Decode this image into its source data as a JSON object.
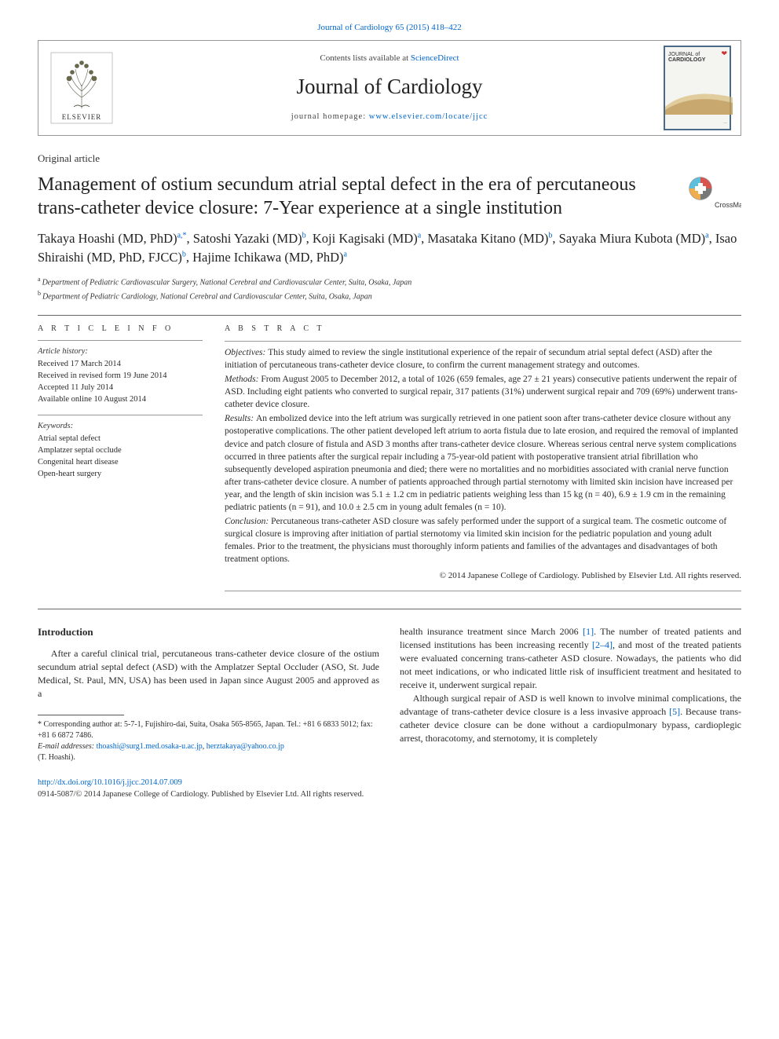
{
  "top_citation": "Journal of Cardiology 65 (2015) 418–422",
  "header": {
    "contents_line_pre": "Contents lists available at ",
    "contents_line_link": "ScienceDirect",
    "journal_name": "Journal of Cardiology",
    "homepage_pre": "journal homepage: ",
    "homepage_link": "www.elsevier.com/locate/jjcc",
    "publisher_name": "ELSEVIER",
    "cover_label_1": "JOURNAL of",
    "cover_label_2": "CARDIOLOGY"
  },
  "article_type": "Original article",
  "title": "Management of ostium secundum atrial septal defect in the era of percutaneous trans-catheter device closure: 7-Year experience at a single institution",
  "crossmark_label": "CrossMark",
  "authors_html_parts": [
    {
      "name": "Takaya Hoashi (MD, PhD)",
      "sup": "a,*"
    },
    {
      "name": "Satoshi Yazaki (MD)",
      "sup": "b"
    },
    {
      "name": "Koji Kagisaki (MD)",
      "sup": "a"
    },
    {
      "name": "Masataka Kitano (MD)",
      "sup": "b"
    },
    {
      "name": "Sayaka Miura Kubota (MD)",
      "sup": "a"
    },
    {
      "name": "Isao Shiraishi (MD, PhD, FJCC)",
      "sup": "b"
    },
    {
      "name": "Hajime Ichikawa (MD, PhD)",
      "sup": "a"
    }
  ],
  "affiliations": [
    {
      "key": "a",
      "text": "Department of Pediatric Cardiovascular Surgery, National Cerebral and Cardiovascular Center, Suita, Osaka, Japan"
    },
    {
      "key": "b",
      "text": "Department of Pediatric Cardiology, National Cerebral and Cardiovascular Center, Suita, Osaka, Japan"
    }
  ],
  "article_info": {
    "section_label": "A R T I C L E  I N F O",
    "history_label": "Article history:",
    "history": [
      "Received 17 March 2014",
      "Received in revised form 19 June 2014",
      "Accepted 11 July 2014",
      "Available online 10 August 2014"
    ],
    "keywords_label": "Keywords:",
    "keywords": [
      "Atrial septal defect",
      "Amplatzer septal occlude",
      "Congenital heart disease",
      "Open-heart surgery"
    ]
  },
  "abstract": {
    "section_label": "A B S T R A C T",
    "parts": [
      {
        "label": "Objectives:",
        "text": "This study aimed to review the single institutional experience of the repair of secundum atrial septal defect (ASD) after the initiation of percutaneous trans-catheter device closure, to confirm the current management strategy and outcomes."
      },
      {
        "label": "Methods:",
        "text": "From August 2005 to December 2012, a total of 1026 (659 females, age 27 ± 21 years) consecutive patients underwent the repair of ASD. Including eight patients who converted to surgical repair, 317 patients (31%) underwent surgical repair and 709 (69%) underwent trans-catheter device closure."
      },
      {
        "label": "Results:",
        "text": "An embolized device into the left atrium was surgically retrieved in one patient soon after trans-catheter device closure without any postoperative complications. The other patient developed left atrium to aorta fistula due to late erosion, and required the removal of implanted device and patch closure of fistula and ASD 3 months after trans-catheter device closure. Whereas serious central nerve system complications occurred in three patients after the surgical repair including a 75-year-old patient with postoperative transient atrial fibrillation who subsequently developed aspiration pneumonia and died; there were no mortalities and no morbidities associated with cranial nerve function after trans-catheter device closure. A number of patients approached through partial sternotomy with limited skin incision have increased per year, and the length of skin incision was 5.1 ± 1.2 cm in pediatric patients weighing less than 15 kg (n = 40), 6.9 ± 1.9 cm in the remaining pediatric patients (n = 91), and 10.0 ± 2.5 cm in young adult females (n = 10)."
      },
      {
        "label": "Conclusion:",
        "text": "Percutaneous trans-catheter ASD closure was safely performed under the support of a surgical team. The cosmetic outcome of surgical closure is improving after initiation of partial sternotomy via limited skin incision for the pediatric population and young adult females. Prior to the treatment, the physicians must thoroughly inform patients and families of the advantages and disadvantages of both treatment options."
      }
    ],
    "copyright": "© 2014 Japanese College of Cardiology. Published by Elsevier Ltd. All rights reserved."
  },
  "body": {
    "intro_heading": "Introduction",
    "left_para": "After a careful clinical trial, percutaneous trans-catheter device closure of the ostium secundum atrial septal defect (ASD) with the Amplatzer Septal Occluder (ASO, St. Jude Medical, St. Paul, MN, USA) has been used in Japan since August 2005 and approved as a",
    "right_para_1_pre": "health insurance treatment since March 2006 ",
    "right_para_1_ref1": "[1]",
    "right_para_1_mid": ". The number of treated patients and licensed institutions has been increasing recently ",
    "right_para_1_ref2": "[2–4]",
    "right_para_1_post": ", and most of the treated patients were evaluated concerning trans-catheter ASD closure. Nowadays, the patients who did not meet indications, or who indicated little risk of insufficient treatment and hesitated to receive it, underwent surgical repair.",
    "right_para_2_pre": "Although surgical repair of ASD is well known to involve minimal complications, the advantage of trans-catheter device closure is a less invasive approach ",
    "right_para_2_ref": "[5]",
    "right_para_2_post": ". Because trans-catheter device closure can be done without a cardiopulmonary bypass, cardioplegic arrest, thoracotomy, and sternotomy, it is completely"
  },
  "footnote": {
    "corr_pre": "* Corresponding author at: 5-7-1, Fujishiro-dai, Suita, Osaka 565-8565, Japan. Tel.: +81 6 6833 5012; fax: +81 6 6872 7486.",
    "email_label": "E-mail addresses:",
    "email1": "thoashi@surg1.med.osaka-u.ac.jp",
    "email_sep": ", ",
    "email2": "herztakaya@yahoo.co.jp",
    "email_post": "(T. Hoashi)."
  },
  "footer": {
    "doi": "http://dx.doi.org/10.1016/j.jjcc.2014.07.009",
    "issn_copy": "0914-5087/© 2014 Japanese College of Cardiology. Published by Elsevier Ltd. All rights reserved."
  },
  "colors": {
    "link": "#0066cc",
    "text": "#2a2a2a",
    "rule": "#666666",
    "cover_border": "#4a6a8a"
  }
}
